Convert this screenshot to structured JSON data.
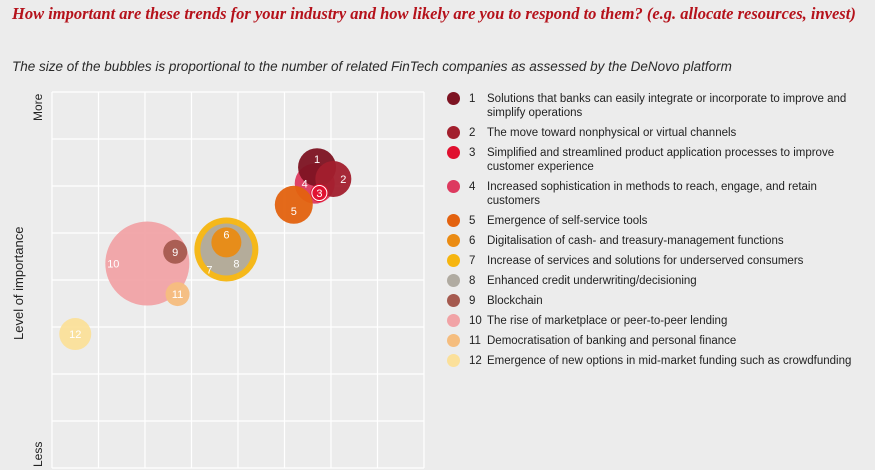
{
  "header": {
    "title": "How important are these trends for your industry and how likely are you to respond to them? (e.g. allocate resources, invest)",
    "subtitle": "The size of the bubbles is proportional to the number of related FinTech companies as assessed by the DeNovo platform"
  },
  "chart_data": {
    "type": "scatter",
    "variant": "bubble",
    "ylabel": "Level of importance",
    "y_end_labels": {
      "top": "More",
      "bottom": "Less"
    },
    "grid": true,
    "legend_position": "right",
    "series": [
      {
        "id": "1",
        "label": "Solutions that banks can easily integrate or incorporate to improve and simplify operations",
        "x": 5.7,
        "y": 6.4,
        "size": 19,
        "color": "#7d1322"
      },
      {
        "id": "2",
        "label": "The move toward nonphysical or virtual channels",
        "x": 6.05,
        "y": 6.15,
        "size": 18,
        "color": "#a21f2d"
      },
      {
        "id": "3",
        "label": "Simplified and streamlined product application processes to improve customer experience",
        "x": 5.75,
        "y": 5.85,
        "size": 9,
        "color": "#e0102f"
      },
      {
        "id": "4",
        "label": "Increased sophistication in methods to reach, engage, and retain customers",
        "x": 5.65,
        "y": 6.05,
        "size": 20,
        "color": "#dd3a5f"
      },
      {
        "id": "5",
        "label": "Emergence of self-service tools",
        "x": 5.2,
        "y": 5.6,
        "size": 19,
        "color": "#e3620f"
      },
      {
        "id": "6",
        "label": "Digitalisation of cash- and treasury-management functions",
        "x": 3.75,
        "y": 4.8,
        "size": 15,
        "color": "#ea8b13"
      },
      {
        "id": "7",
        "label": "Increase of services and solutions for underserved consumers",
        "x": 3.75,
        "y": 4.65,
        "size": 32,
        "color": "#f6b50f"
      },
      {
        "id": "8",
        "label": "Enhanced credit underwriting/decisioning",
        "x": 3.75,
        "y": 4.65,
        "size": 26,
        "color": "#b0aba1"
      },
      {
        "id": "9",
        "label": "Blockchain",
        "x": 2.65,
        "y": 4.6,
        "size": 12,
        "color": "#a55a4f"
      },
      {
        "id": "10",
        "label": "The rise of marketplace or peer-to-peer lending",
        "x": 2.05,
        "y": 4.35,
        "size": 42,
        "color": "#f1a3a6"
      },
      {
        "id": "11",
        "label": "Democratisation of banking and personal finance",
        "x": 2.7,
        "y": 3.7,
        "size": 12,
        "color": "#f5bd7e"
      },
      {
        "id": "12",
        "label": "Emergence of new options in mid-market funding such as crowdfunding",
        "x": 0.5,
        "y": 2.85,
        "size": 16,
        "color": "#fbe09a"
      }
    ]
  }
}
